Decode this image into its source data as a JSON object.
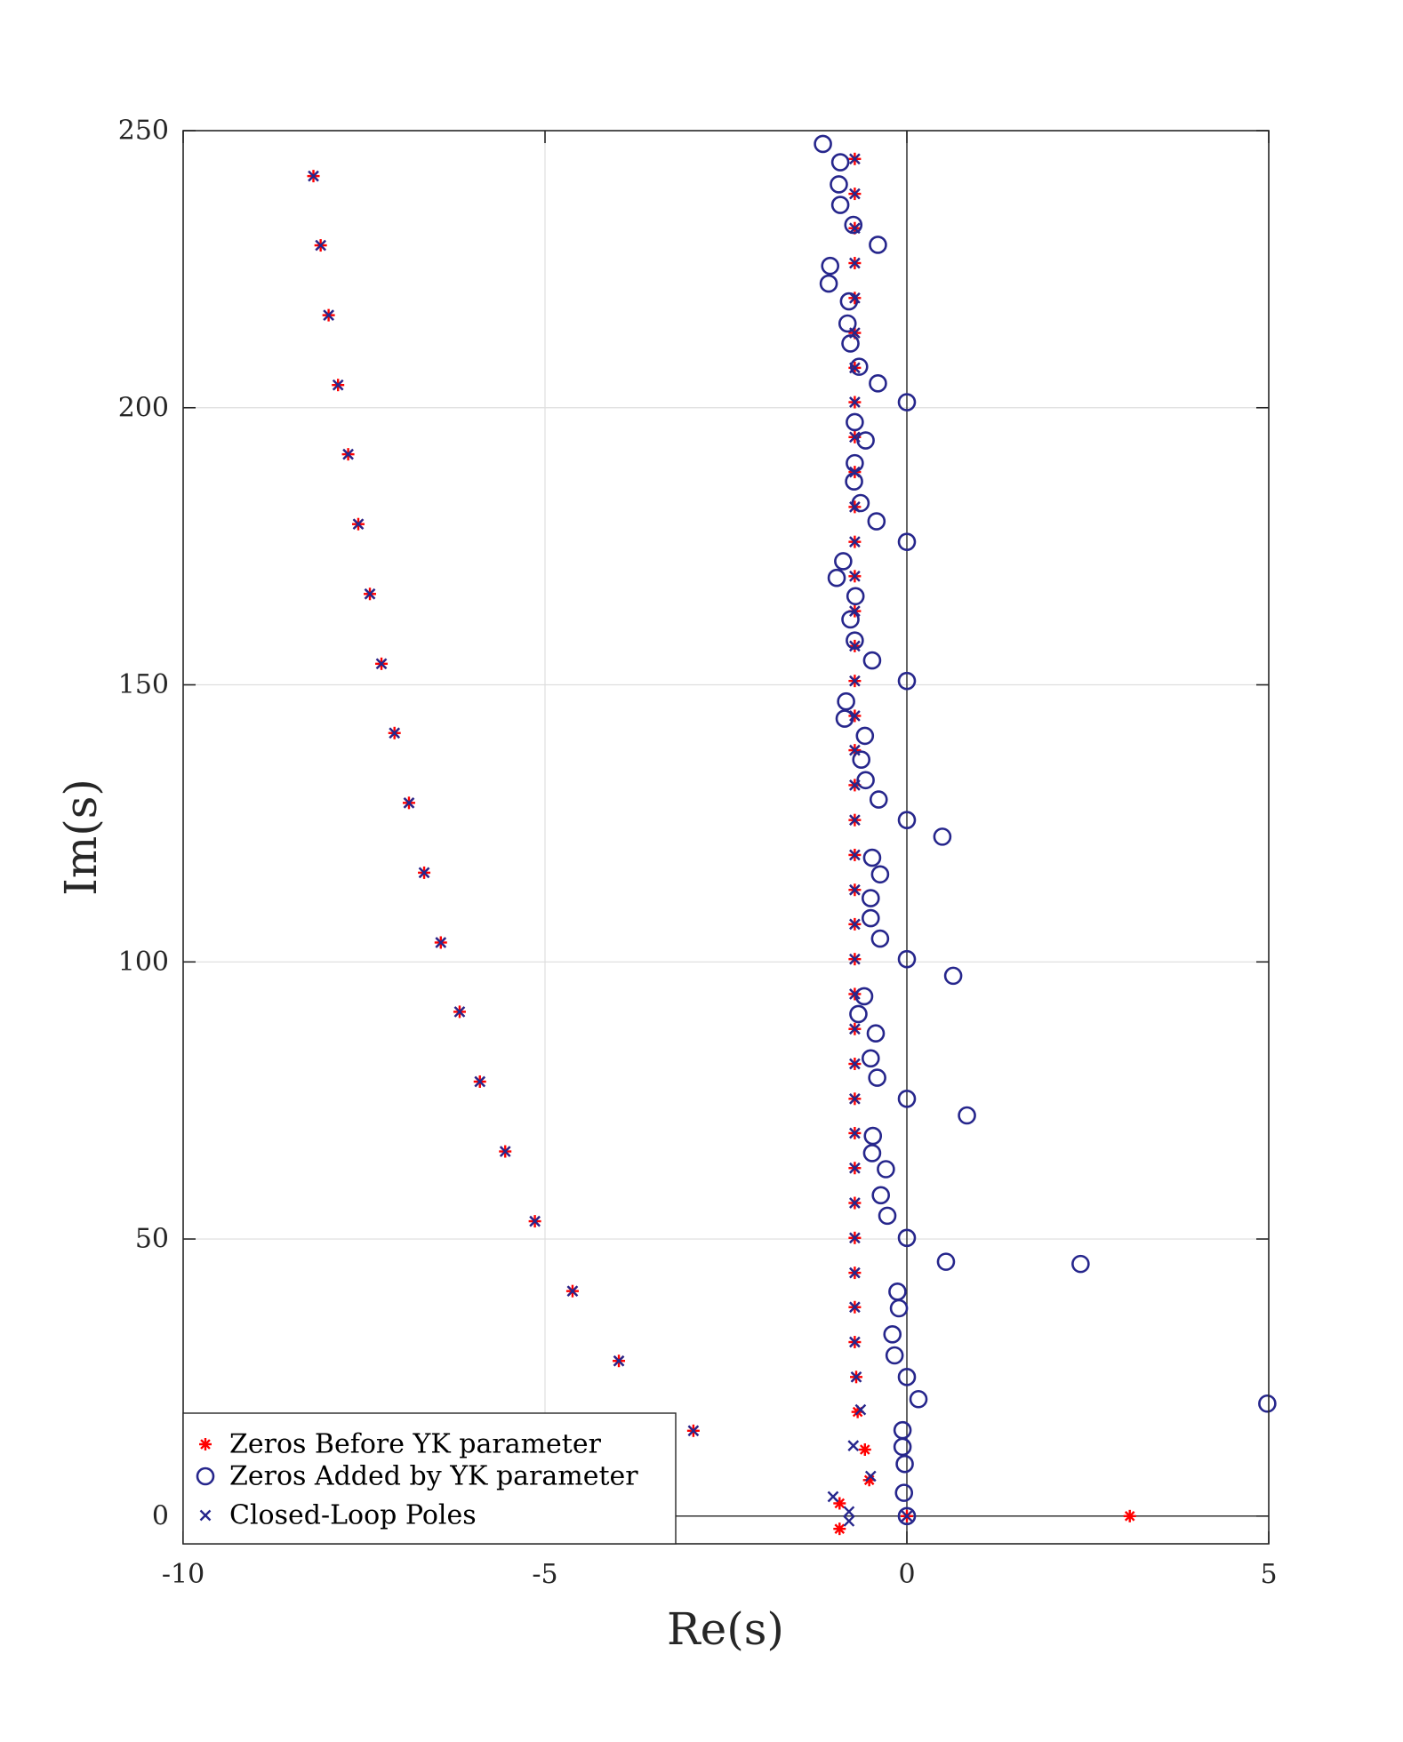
{
  "chart_data": {
    "type": "scatter",
    "title": "",
    "xlabel": "Re(s)",
    "ylabel": "Im(s)",
    "xlim": [
      -10,
      5
    ],
    "ylim": [
      -5,
      250
    ],
    "xticks": [
      -10,
      -5,
      0,
      5
    ],
    "xtick_labels": [
      "-10",
      "-5",
      "0",
      "5"
    ],
    "yticks": [
      0,
      50,
      100,
      150,
      200,
      250
    ],
    "ytick_labels": [
      "0",
      "50",
      "100",
      "150",
      "200",
      "250"
    ],
    "grid": true,
    "legend_position": "bottom-left",
    "colors": {
      "zeros_before": "#ff0000",
      "zeros_added": "#26268c",
      "poles": "#26268c",
      "axes": "#262626",
      "grid": "#dedede"
    },
    "series": [
      {
        "name": "Zeros Before YK parameter",
        "marker": "asterisk",
        "points": [
          [
            -8.2,
            241.8
          ],
          [
            -8.1,
            229.3
          ],
          [
            -7.99,
            216.7
          ],
          [
            -7.86,
            204.1
          ],
          [
            -7.72,
            191.6
          ],
          [
            -7.58,
            179.0
          ],
          [
            -7.42,
            166.4
          ],
          [
            -7.26,
            153.8
          ],
          [
            -7.08,
            141.3
          ],
          [
            -6.88,
            128.7
          ],
          [
            -6.67,
            116.1
          ],
          [
            -6.44,
            103.5
          ],
          [
            -6.18,
            91.0
          ],
          [
            -5.9,
            78.4
          ],
          [
            -5.55,
            65.8
          ],
          [
            -5.14,
            53.2
          ],
          [
            -4.62,
            40.6
          ],
          [
            -3.98,
            28.0
          ],
          [
            -2.95,
            15.4
          ],
          [
            -0.72,
            244.9
          ],
          [
            -0.72,
            238.6
          ],
          [
            -0.72,
            232.4
          ],
          [
            -0.72,
            226.1
          ],
          [
            -0.72,
            219.8
          ],
          [
            -0.72,
            213.5
          ],
          [
            -0.72,
            207.2
          ],
          [
            -0.72,
            201.0
          ],
          [
            -0.72,
            194.7
          ],
          [
            -0.72,
            188.4
          ],
          [
            -0.72,
            182.1
          ],
          [
            -0.72,
            175.8
          ],
          [
            -0.72,
            169.6
          ],
          [
            -0.72,
            163.3
          ],
          [
            -0.72,
            157.0
          ],
          [
            -0.72,
            150.7
          ],
          [
            -0.72,
            144.4
          ],
          [
            -0.72,
            138.2
          ],
          [
            -0.72,
            131.9
          ],
          [
            -0.72,
            125.6
          ],
          [
            -0.72,
            119.3
          ],
          [
            -0.72,
            113.0
          ],
          [
            -0.72,
            106.8
          ],
          [
            -0.72,
            100.5
          ],
          [
            -0.72,
            94.2
          ],
          [
            -0.72,
            87.9
          ],
          [
            -0.72,
            81.6
          ],
          [
            -0.72,
            75.3
          ],
          [
            -0.72,
            69.1
          ],
          [
            -0.72,
            62.8
          ],
          [
            -0.72,
            56.5
          ],
          [
            -0.72,
            50.2
          ],
          [
            -0.72,
            43.9
          ],
          [
            -0.72,
            37.7
          ],
          [
            -0.72,
            31.4
          ],
          [
            -0.7,
            25.1
          ],
          [
            -0.68,
            18.8
          ],
          [
            -0.58,
            12.0
          ],
          [
            -0.52,
            6.5
          ],
          [
            -0.93,
            2.3
          ],
          [
            -0.93,
            -2.3
          ],
          [
            0.0,
            0.0
          ],
          [
            3.08,
            0.0
          ]
        ]
      },
      {
        "name": "Zeros Added by YK parameter",
        "marker": "circle",
        "points": [
          [
            -1.16,
            247.6
          ],
          [
            -0.92,
            244.3
          ],
          [
            -0.94,
            240.3
          ],
          [
            -0.92,
            236.6
          ],
          [
            -0.74,
            233.0
          ],
          [
            -0.4,
            229.4
          ],
          [
            -1.06,
            225.6
          ],
          [
            -1.08,
            222.4
          ],
          [
            -0.8,
            219.2
          ],
          [
            -0.82,
            215.2
          ],
          [
            -0.78,
            211.6
          ],
          [
            -0.66,
            207.4
          ],
          [
            -0.4,
            204.4
          ],
          [
            0.0,
            201.0
          ],
          [
            -0.72,
            197.4
          ],
          [
            -0.57,
            194.1
          ],
          [
            -0.72,
            190.0
          ],
          [
            -0.73,
            186.7
          ],
          [
            -0.64,
            182.8
          ],
          [
            -0.42,
            179.5
          ],
          [
            0.0,
            175.8
          ],
          [
            -0.88,
            172.3
          ],
          [
            -0.97,
            169.3
          ],
          [
            -0.71,
            166.0
          ],
          [
            -0.78,
            161.8
          ],
          [
            -0.72,
            158.0
          ],
          [
            -0.48,
            154.4
          ],
          [
            0.0,
            150.7
          ],
          [
            -0.84,
            147.0
          ],
          [
            -0.86,
            143.9
          ],
          [
            -0.58,
            140.8
          ],
          [
            -0.63,
            136.5
          ],
          [
            -0.57,
            132.8
          ],
          [
            -0.39,
            129.3
          ],
          [
            0.0,
            125.6
          ],
          [
            0.49,
            122.6
          ],
          [
            -0.48,
            118.8
          ],
          [
            -0.37,
            115.8
          ],
          [
            -0.5,
            111.5
          ],
          [
            -0.5,
            107.9
          ],
          [
            -0.37,
            104.2
          ],
          [
            0.0,
            100.5
          ],
          [
            0.64,
            97.5
          ],
          [
            -0.59,
            93.8
          ],
          [
            -0.67,
            90.6
          ],
          [
            -0.43,
            87.1
          ],
          [
            -0.5,
            82.6
          ],
          [
            -0.41,
            79.1
          ],
          [
            0.0,
            75.3
          ],
          [
            0.83,
            72.3
          ],
          [
            -0.47,
            68.6
          ],
          [
            -0.48,
            65.5
          ],
          [
            -0.29,
            62.6
          ],
          [
            -0.36,
            57.9
          ],
          [
            -0.27,
            54.2
          ],
          [
            0.0,
            50.2
          ],
          [
            0.54,
            45.9
          ],
          [
            2.4,
            45.5
          ],
          [
            -0.13,
            40.5
          ],
          [
            -0.11,
            37.5
          ],
          [
            -0.2,
            32.8
          ],
          [
            -0.17,
            29.0
          ],
          [
            0.0,
            25.1
          ],
          [
            0.16,
            21.1
          ],
          [
            4.98,
            20.3
          ],
          [
            -0.06,
            15.5
          ],
          [
            -0.06,
            12.5
          ],
          [
            -0.03,
            9.4
          ],
          [
            -0.04,
            4.2
          ],
          [
            0.0,
            0.0
          ]
        ]
      },
      {
        "name": "Closed-Loop Poles",
        "marker": "x",
        "points": [
          [
            -8.2,
            241.8
          ],
          [
            -8.1,
            229.3
          ],
          [
            -7.99,
            216.7
          ],
          [
            -7.86,
            204.1
          ],
          [
            -7.72,
            191.6
          ],
          [
            -7.58,
            179.0
          ],
          [
            -7.42,
            166.4
          ],
          [
            -7.26,
            153.8
          ],
          [
            -7.08,
            141.3
          ],
          [
            -6.88,
            128.7
          ],
          [
            -6.67,
            116.1
          ],
          [
            -6.44,
            103.5
          ],
          [
            -6.18,
            91.0
          ],
          [
            -5.9,
            78.4
          ],
          [
            -5.55,
            65.8
          ],
          [
            -5.14,
            53.2
          ],
          [
            -4.62,
            40.6
          ],
          [
            -3.98,
            28.0
          ],
          [
            -2.95,
            15.4
          ],
          [
            -0.72,
            244.9
          ],
          [
            -0.72,
            238.6
          ],
          [
            -0.72,
            232.4
          ],
          [
            -0.72,
            226.1
          ],
          [
            -0.72,
            219.8
          ],
          [
            -0.72,
            213.5
          ],
          [
            -0.72,
            207.2
          ],
          [
            -0.72,
            201.0
          ],
          [
            -0.72,
            194.7
          ],
          [
            -0.72,
            188.4
          ],
          [
            -0.72,
            182.1
          ],
          [
            -0.72,
            175.8
          ],
          [
            -0.72,
            169.6
          ],
          [
            -0.72,
            163.3
          ],
          [
            -0.72,
            157.0
          ],
          [
            -0.72,
            150.7
          ],
          [
            -0.72,
            144.4
          ],
          [
            -0.72,
            138.2
          ],
          [
            -0.72,
            131.9
          ],
          [
            -0.72,
            125.6
          ],
          [
            -0.72,
            119.3
          ],
          [
            -0.72,
            113.0
          ],
          [
            -0.72,
            106.8
          ],
          [
            -0.72,
            100.5
          ],
          [
            -0.72,
            94.2
          ],
          [
            -0.72,
            87.9
          ],
          [
            -0.72,
            81.6
          ],
          [
            -0.72,
            75.3
          ],
          [
            -0.72,
            69.1
          ],
          [
            -0.72,
            62.8
          ],
          [
            -0.72,
            56.5
          ],
          [
            -0.72,
            50.2
          ],
          [
            -0.72,
            43.9
          ],
          [
            -0.72,
            37.7
          ],
          [
            -0.72,
            31.4
          ],
          [
            -0.7,
            25.1
          ],
          [
            -0.64,
            19.2
          ],
          [
            -0.74,
            12.7
          ],
          [
            -0.5,
            7.2
          ],
          [
            -1.02,
            3.5
          ],
          [
            -0.8,
            0.8
          ],
          [
            -0.8,
            -0.9
          ],
          [
            0.0,
            0.0
          ]
        ]
      }
    ]
  }
}
